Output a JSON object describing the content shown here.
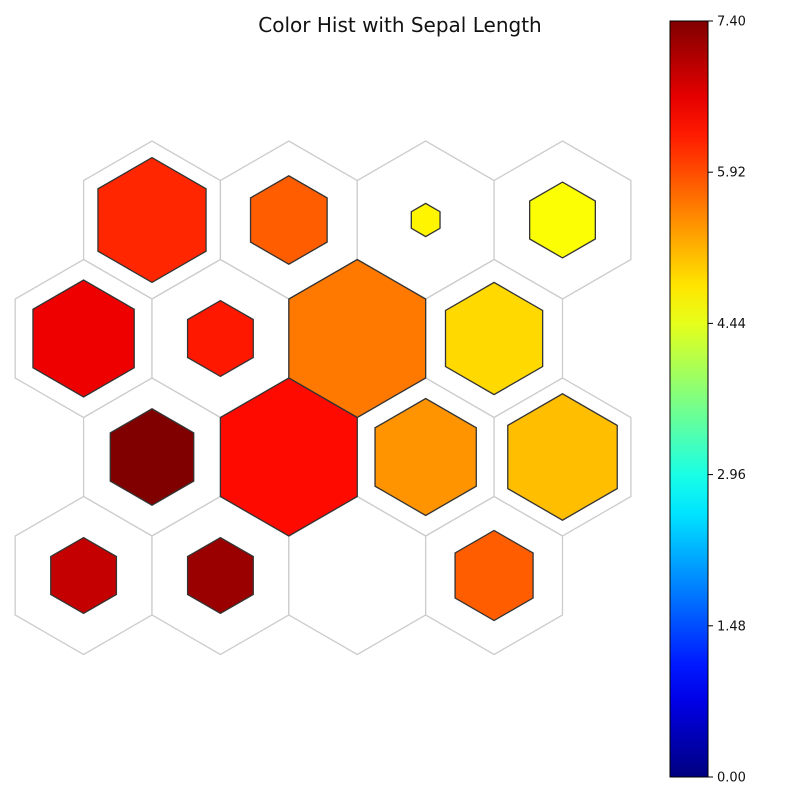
{
  "chart_data": {
    "type": "heatmap",
    "subtype": "hexagonal-som-color-hist",
    "title": "Color Hist with Sepal Length",
    "grid": {
      "rows": 4,
      "cols": 4,
      "offset_rows": "odd"
    },
    "colormap": "jet",
    "colorbar": {
      "min": 0.0,
      "max": 7.4,
      "ticks": [
        "0.00",
        "1.48",
        "2.96",
        "4.44",
        "5.92",
        "7.40"
      ],
      "placement": "right"
    },
    "cells": [
      {
        "row": 0,
        "col": 0,
        "value": 6.2,
        "size": 0.79
      },
      {
        "row": 0,
        "col": 1,
        "value": 5.8,
        "size": 0.56
      },
      {
        "row": 0,
        "col": 2,
        "value": 4.7,
        "size": 0.21
      },
      {
        "row": 0,
        "col": 3,
        "value": 4.6,
        "size": 0.48
      },
      {
        "row": 1,
        "col": 0,
        "value": 6.6,
        "size": 0.74
      },
      {
        "row": 1,
        "col": 1,
        "value": 6.3,
        "size": 0.48
      },
      {
        "row": 1,
        "col": 2,
        "value": 5.6,
        "size": 1.0
      },
      {
        "row": 1,
        "col": 3,
        "value": 4.9,
        "size": 0.71
      },
      {
        "row": 2,
        "col": 0,
        "value": 7.4,
        "size": 0.61
      },
      {
        "row": 2,
        "col": 1,
        "value": 6.4,
        "size": 1.0
      },
      {
        "row": 2,
        "col": 2,
        "value": 5.4,
        "size": 0.74
      },
      {
        "row": 2,
        "col": 3,
        "value": 5.1,
        "size": 0.8
      },
      {
        "row": 3,
        "col": 0,
        "value": 6.9,
        "size": 0.48
      },
      {
        "row": 3,
        "col": 1,
        "value": 7.2,
        "size": 0.48
      },
      {
        "row": 3,
        "col": 2,
        "value": null,
        "size": 0
      },
      {
        "row": 3,
        "col": 3,
        "value": 5.8,
        "size": 0.57
      }
    ]
  }
}
